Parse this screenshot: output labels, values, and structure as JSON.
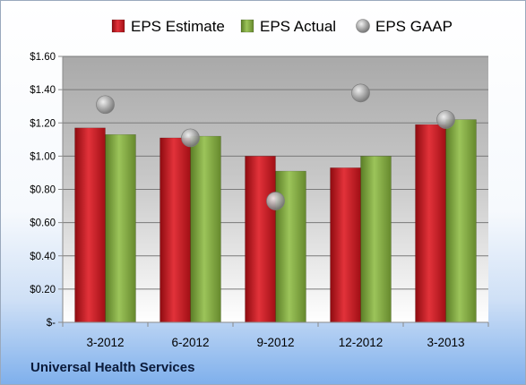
{
  "chart_data": {
    "type": "bar",
    "title": "",
    "xlabel": "",
    "ylabel": "",
    "categories": [
      "3-2012",
      "6-2012",
      "9-2012",
      "12-2012",
      "3-2013"
    ],
    "series": [
      {
        "name": "EPS Estimate",
        "kind": "bar",
        "color": "#c8161d",
        "values": [
          1.17,
          1.11,
          1.0,
          0.93,
          1.19
        ]
      },
      {
        "name": "EPS Actual",
        "kind": "bar",
        "color": "#7fa83c",
        "values": [
          1.13,
          1.12,
          0.91,
          1.0,
          1.22
        ]
      },
      {
        "name": "EPS GAAP",
        "kind": "point",
        "color": "#a6a6a6",
        "values": [
          1.31,
          1.11,
          0.73,
          1.38,
          1.22
        ]
      }
    ],
    "ylim": [
      0,
      1.6
    ],
    "yticks": [
      0,
      0.2,
      0.4,
      0.6,
      0.8,
      1.0,
      1.2,
      1.4,
      1.6
    ],
    "ytick_labels": [
      "$-",
      "$0.20",
      "$0.40",
      "$0.60",
      "$0.80",
      "$1.00",
      "$1.20",
      "$1.40",
      "$1.60"
    ],
    "grid": true,
    "legend_position": "top"
  },
  "footer": {
    "company": "Universal Health Services"
  }
}
